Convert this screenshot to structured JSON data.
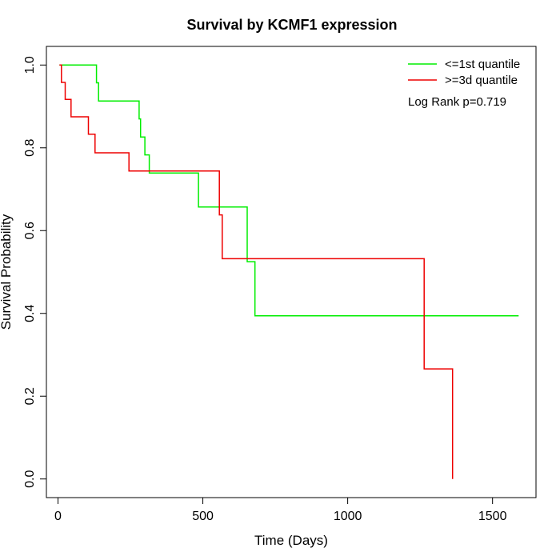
{
  "chart_data": {
    "type": "line",
    "title": "Survival by KCMF1 expression",
    "xlabel": "Time (Days)",
    "ylabel": "Survival Probability",
    "xlim": [
      -40,
      1650
    ],
    "ylim": [
      -0.045,
      1.045
    ],
    "x_ticks": [
      0,
      500,
      1000,
      1500
    ],
    "y_ticks": [
      0.0,
      0.2,
      0.4,
      0.6,
      0.8,
      1.0
    ],
    "x_tick_labels": [
      "0",
      "500",
      "1000",
      "1500"
    ],
    "y_tick_labels": [
      "0.0",
      "0.2",
      "0.4",
      "0.6",
      "0.8",
      "1.0"
    ],
    "grid": false,
    "legend_position": "top-right",
    "annotation": "Log Rank p=0.719",
    "series": [
      {
        "name": "<=1st quantile",
        "color": "#00ee00",
        "step_points": [
          [
            5,
            1.0
          ],
          [
            133,
            1.0
          ],
          [
            133,
            0.957
          ],
          [
            140,
            0.957
          ],
          [
            140,
            0.913
          ],
          [
            280,
            0.913
          ],
          [
            280,
            0.87
          ],
          [
            285,
            0.87
          ],
          [
            285,
            0.826
          ],
          [
            300,
            0.826
          ],
          [
            300,
            0.783
          ],
          [
            315,
            0.783
          ],
          [
            315,
            0.739
          ],
          [
            485,
            0.739
          ],
          [
            485,
            0.657
          ],
          [
            653,
            0.657
          ],
          [
            653,
            0.525
          ],
          [
            680,
            0.525
          ],
          [
            680,
            0.394
          ],
          [
            1590,
            0.394
          ]
        ]
      },
      {
        "name": ">=3d quantile",
        "color": "#ee0000",
        "step_points": [
          [
            5,
            1.0
          ],
          [
            12,
            1.0
          ],
          [
            12,
            0.958
          ],
          [
            25,
            0.958
          ],
          [
            25,
            0.917
          ],
          [
            45,
            0.917
          ],
          [
            45,
            0.875
          ],
          [
            105,
            0.875
          ],
          [
            105,
            0.833
          ],
          [
            128,
            0.833
          ],
          [
            128,
            0.788
          ],
          [
            245,
            0.788
          ],
          [
            245,
            0.744
          ],
          [
            557,
            0.744
          ],
          [
            557,
            0.638
          ],
          [
            567,
            0.638
          ],
          [
            567,
            0.532
          ],
          [
            1264,
            0.532
          ],
          [
            1264,
            0.266
          ],
          [
            1362,
            0.266
          ],
          [
            1362,
            0.0
          ]
        ]
      }
    ]
  }
}
